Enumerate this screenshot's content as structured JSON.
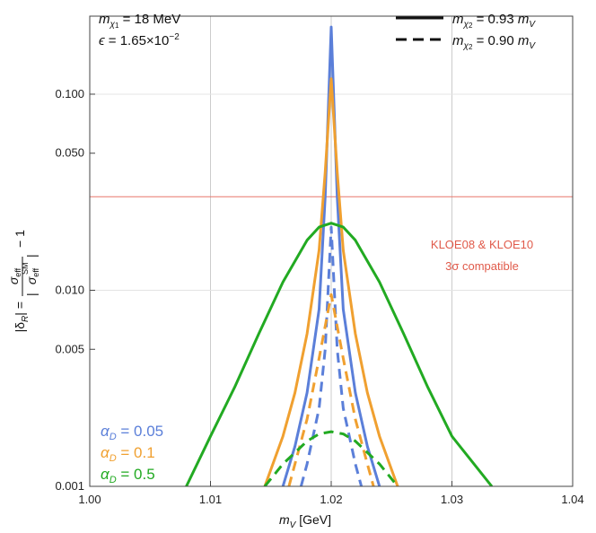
{
  "chart_data": {
    "type": "line",
    "xlabel_main": "m",
    "xlabel_sub": "V",
    "xlabel_unit": " [GeV]",
    "xlim": [
      1.0,
      1.04
    ],
    "ylim": [
      0.001,
      0.25
    ],
    "y_scale": "log",
    "x_ticks": [
      {
        "v": 1.0,
        "label": "1.00"
      },
      {
        "v": 1.01,
        "label": "1.01"
      },
      {
        "v": 1.02,
        "label": "1.02"
      },
      {
        "v": 1.03,
        "label": "1.03"
      },
      {
        "v": 1.04,
        "label": "1.04"
      }
    ],
    "y_ticks": [
      {
        "v": 0.001,
        "label": "0.001"
      },
      {
        "v": 0.005,
        "label": "0.005"
      },
      {
        "v": 0.01,
        "label": "0.010"
      },
      {
        "v": 0.05,
        "label": "0.050"
      },
      {
        "v": 0.1,
        "label": "0.100"
      }
    ],
    "grid_x": [
      1.01,
      1.02,
      1.03
    ],
    "grid_y": [
      0.001,
      0.01,
      0.1
    ],
    "threshold": {
      "value": 0.03,
      "color": "#e8776b",
      "label_line1": "KLOE08 & KLOE10",
      "label_line2": "3σ compatible"
    },
    "series": [
      {
        "name": "α_D = 0.05, m_χ2 = 0.93 m_V",
        "color": "#5b7fd9",
        "style": "solid",
        "x": [
          1.016,
          1.017,
          1.018,
          1.019,
          1.0195,
          1.02,
          1.0205,
          1.021,
          1.022,
          1.023,
          1.024
        ],
        "y": [
          0.001,
          0.0016,
          0.003,
          0.008,
          0.03,
          0.22,
          0.03,
          0.008,
          0.003,
          0.0016,
          0.001
        ]
      },
      {
        "name": "α_D = 0.1, m_χ2 = 0.93 m_V",
        "color": "#f0a030",
        "style": "solid",
        "x": [
          1.0145,
          1.016,
          1.017,
          1.018,
          1.019,
          1.0195,
          1.02,
          1.0205,
          1.021,
          1.022,
          1.023,
          1.024,
          1.0255
        ],
        "y": [
          0.001,
          0.0018,
          0.003,
          0.006,
          0.016,
          0.04,
          0.12,
          0.04,
          0.016,
          0.006,
          0.003,
          0.0018,
          0.001
        ]
      },
      {
        "name": "α_D = 0.5, m_χ2 = 0.93 m_V",
        "color": "#22aa22",
        "style": "solid",
        "x": [
          1.008,
          1.01,
          1.012,
          1.014,
          1.016,
          1.018,
          1.019,
          1.02,
          1.021,
          1.022,
          1.024,
          1.026,
          1.028,
          1.03,
          1.0333
        ],
        "y": [
          0.001,
          0.0018,
          0.0032,
          0.006,
          0.011,
          0.018,
          0.021,
          0.022,
          0.021,
          0.018,
          0.011,
          0.006,
          0.0032,
          0.0018,
          0.001
        ]
      },
      {
        "name": "α_D = 0.05, m_χ2 = 0.90 m_V",
        "color": "#5b7fd9",
        "style": "dashed",
        "x": [
          1.0175,
          1.018,
          1.019,
          1.0195,
          1.02,
          1.0205,
          1.021,
          1.022,
          1.0225
        ],
        "y": [
          0.001,
          0.0013,
          0.0025,
          0.005,
          0.021,
          0.005,
          0.0025,
          0.0013,
          0.001
        ]
      },
      {
        "name": "α_D = 0.1, m_χ2 = 0.90 m_V",
        "color": "#f0a030",
        "style": "dashed",
        "x": [
          1.0165,
          1.017,
          1.018,
          1.019,
          1.02,
          1.021,
          1.022,
          1.023,
          1.0235
        ],
        "y": [
          0.001,
          0.0013,
          0.0022,
          0.0045,
          0.0095,
          0.0045,
          0.0022,
          0.0013,
          0.001
        ]
      },
      {
        "name": "α_D = 0.5, m_χ2 = 0.90 m_V",
        "color": "#22aa22",
        "style": "dashed",
        "x": [
          1.0145,
          1.016,
          1.018,
          1.019,
          1.02,
          1.021,
          1.022,
          1.024,
          1.0255
        ],
        "y": [
          0.001,
          0.0013,
          0.0017,
          0.00185,
          0.0019,
          0.00185,
          0.0017,
          0.0013,
          0.001
        ]
      }
    ]
  },
  "annotations": {
    "mchi1_label": "m",
    "mchi1_sub": "χ",
    "mchi1_subsub": "1",
    "mchi1_value": " = 18 MeV",
    "epsilon_symbol": "ϵ",
    "epsilon_value": " = 1.65×10",
    "epsilon_exp": "−2",
    "legend_solid_label": "m",
    "legend_solid_sub": "χ",
    "legend_solid_subsub": "2",
    "legend_solid_value": " = 0.93 ",
    "legend_solid_mv": "m",
    "legend_solid_mv_sub": "V",
    "legend_dash_label": "m",
    "legend_dash_sub": "χ",
    "legend_dash_subsub": "2",
    "legend_dash_value": " = 0.90 ",
    "legend_dash_mv": "m",
    "legend_dash_mv_sub": "V",
    "alpha_symbol": "α",
    "alpha_sub": "D",
    "alpha_005": " = 0.05",
    "alpha_01": " = 0.1",
    "alpha_05": " = 0.5",
    "color_005": "#5b7fd9",
    "color_01": "#f0a030",
    "color_05": "#22aa22"
  },
  "ylabel": {
    "delta": "|δ",
    "delta_sub": "R",
    "eq": "| =",
    "num": "σ",
    "num_sub": "eff",
    "den": "σ",
    "den_sub": "eff",
    "den_sup": "SM",
    "minus_one": "− 1"
  }
}
